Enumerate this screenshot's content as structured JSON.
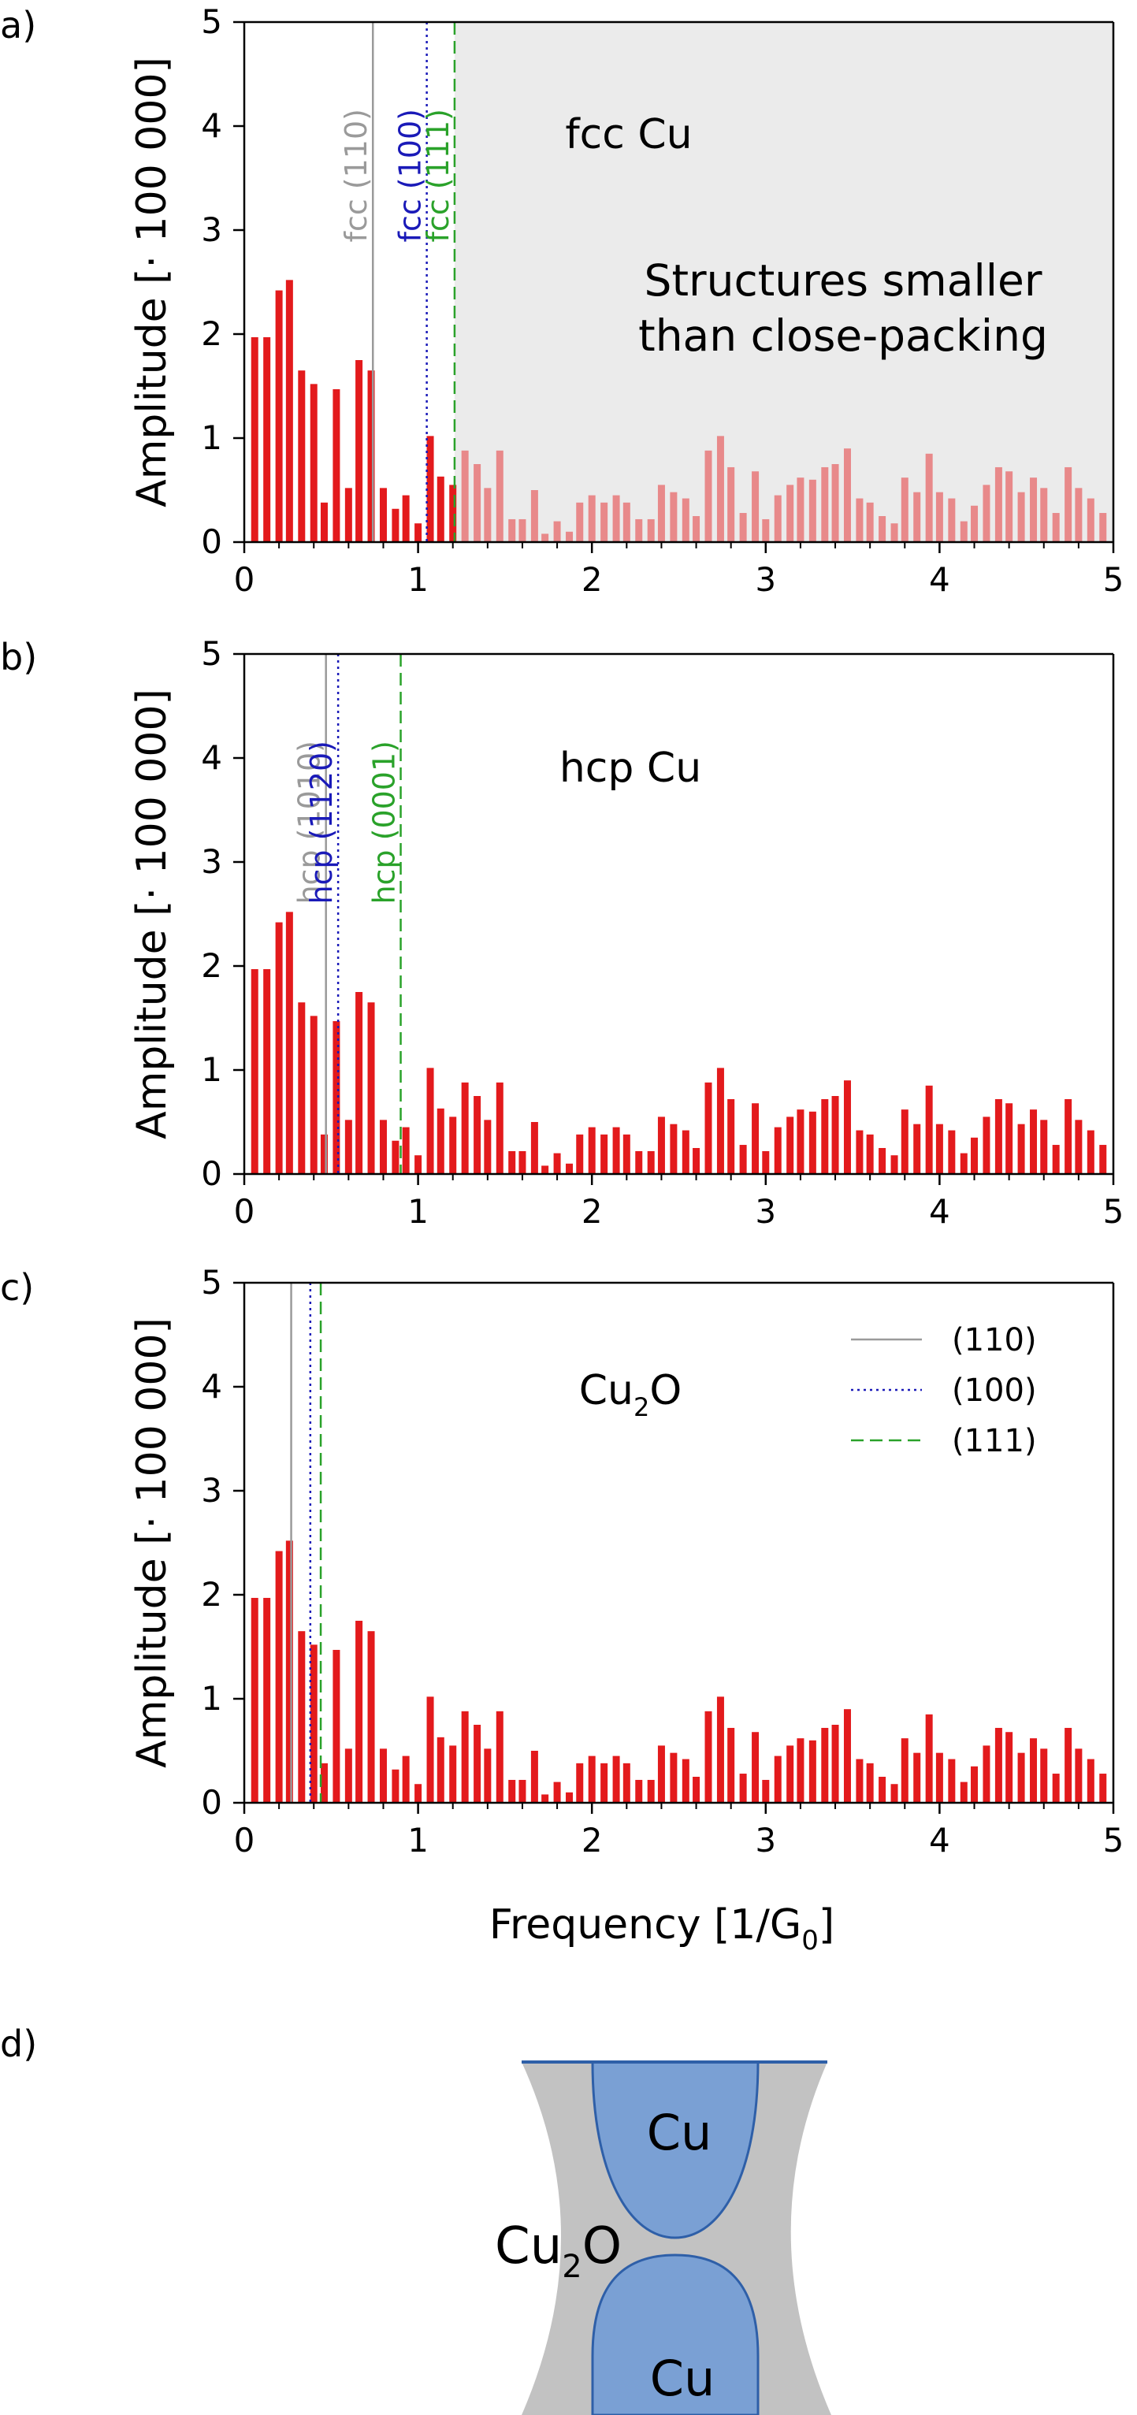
{
  "colors": {
    "bar": "#e31a1c",
    "bar_faded": "#e8898a",
    "shade": "#ebebeb",
    "line_110": "#9a9a9a",
    "line_100": "#1a1ab8",
    "line_111": "#2aa22a",
    "cu_fill": "#7aa0d4",
    "cu_stroke": "#2e5fa8",
    "oxide_fill": "#c2c2c2"
  },
  "chart_data": [
    {
      "type": "bar",
      "panel_label": "a)",
      "title": "fcc Cu",
      "annotation": [
        "Structures smaller",
        "than close-packing"
      ],
      "xlabel": "",
      "ylabel": "Amplitude [· 100 000]",
      "xlim": [
        0,
        5
      ],
      "ylim": [
        0,
        5
      ],
      "xticks": [
        "0",
        "1",
        "2",
        "3",
        "4",
        "5"
      ],
      "yticks": [
        "0",
        "1",
        "2",
        "3",
        "4",
        "5"
      ],
      "shaded_from": 1.21,
      "x": [
        0.06,
        0.13,
        0.2,
        0.26,
        0.33,
        0.4,
        0.46,
        0.53,
        0.6,
        0.66,
        0.73,
        0.8,
        0.87,
        0.93,
        1.0,
        1.07,
        1.13,
        1.2,
        1.27,
        1.34,
        1.4,
        1.47,
        1.54,
        1.6,
        1.67,
        1.73,
        1.8,
        1.87,
        1.93,
        2.0,
        2.07,
        2.14,
        2.2,
        2.27,
        2.34,
        2.4,
        2.47,
        2.54,
        2.6,
        2.67,
        2.74,
        2.8,
        2.87,
        2.94,
        3.0,
        3.07,
        3.14,
        3.2,
        3.27,
        3.34,
        3.4,
        3.47,
        3.54,
        3.6,
        3.67,
        3.74,
        3.8,
        3.87,
        3.94,
        4.0,
        4.07,
        4.14,
        4.2,
        4.27,
        4.34,
        4.4,
        4.47,
        4.54,
        4.6,
        4.67,
        4.74,
        4.8,
        4.87,
        4.94
      ],
      "values": [
        1.97,
        1.97,
        2.42,
        2.52,
        1.65,
        1.52,
        0.38,
        1.47,
        0.52,
        1.75,
        1.65,
        0.52,
        0.32,
        0.45,
        0.18,
        1.02,
        0.63,
        0.55,
        0.88,
        0.75,
        0.52,
        0.88,
        0.22,
        0.22,
        0.5,
        0.08,
        0.2,
        0.1,
        0.38,
        0.45,
        0.38,
        0.45,
        0.38,
        0.22,
        0.22,
        0.55,
        0.48,
        0.42,
        0.25,
        0.88,
        1.02,
        0.72,
        0.28,
        0.68,
        0.22,
        0.45,
        0.55,
        0.62,
        0.6,
        0.72,
        0.75,
        0.9,
        0.42,
        0.38,
        0.25,
        0.18,
        0.62,
        0.48,
        0.85,
        0.48,
        0.42,
        0.2,
        0.35,
        0.55,
        0.72,
        0.68,
        0.48,
        0.62,
        0.52,
        0.28,
        0.72,
        0.52,
        0.42,
        0.28
      ],
      "vlines": [
        {
          "x": 0.74,
          "label": "fcc (110)",
          "style": "solid",
          "color": "#9a9a9a"
        },
        {
          "x": 1.05,
          "label": "fcc (100)",
          "style": "dotted",
          "color": "#1a1ab8"
        },
        {
          "x": 1.21,
          "label": "fcc (111)",
          "style": "dashed",
          "color": "#2aa22a"
        }
      ]
    },
    {
      "type": "bar",
      "panel_label": "b)",
      "title": "hcp Cu",
      "annotation": [],
      "xlabel": "",
      "ylabel": "Amplitude [· 100 000]",
      "xlim": [
        0,
        5
      ],
      "ylim": [
        0,
        5
      ],
      "xticks": [
        "0",
        "1",
        "2",
        "3",
        "4",
        "5"
      ],
      "yticks": [
        "0",
        "1",
        "2",
        "3",
        "4",
        "5"
      ],
      "shaded_from": null,
      "x": [
        0.06,
        0.13,
        0.2,
        0.26,
        0.33,
        0.4,
        0.46,
        0.53,
        0.6,
        0.66,
        0.73,
        0.8,
        0.87,
        0.93,
        1.0,
        1.07,
        1.13,
        1.2,
        1.27,
        1.34,
        1.4,
        1.47,
        1.54,
        1.6,
        1.67,
        1.73,
        1.8,
        1.87,
        1.93,
        2.0,
        2.07,
        2.14,
        2.2,
        2.27,
        2.34,
        2.4,
        2.47,
        2.54,
        2.6,
        2.67,
        2.74,
        2.8,
        2.87,
        2.94,
        3.0,
        3.07,
        3.14,
        3.2,
        3.27,
        3.34,
        3.4,
        3.47,
        3.54,
        3.6,
        3.67,
        3.74,
        3.8,
        3.87,
        3.94,
        4.0,
        4.07,
        4.14,
        4.2,
        4.27,
        4.34,
        4.4,
        4.47,
        4.54,
        4.6,
        4.67,
        4.74,
        4.8,
        4.87,
        4.94
      ],
      "values": [
        1.97,
        1.97,
        2.42,
        2.52,
        1.65,
        1.52,
        0.38,
        1.47,
        0.52,
        1.75,
        1.65,
        0.52,
        0.32,
        0.45,
        0.18,
        1.02,
        0.63,
        0.55,
        0.88,
        0.75,
        0.52,
        0.88,
        0.22,
        0.22,
        0.5,
        0.08,
        0.2,
        0.1,
        0.38,
        0.45,
        0.38,
        0.45,
        0.38,
        0.22,
        0.22,
        0.55,
        0.48,
        0.42,
        0.25,
        0.88,
        1.02,
        0.72,
        0.28,
        0.68,
        0.22,
        0.45,
        0.55,
        0.62,
        0.6,
        0.72,
        0.75,
        0.9,
        0.42,
        0.38,
        0.25,
        0.18,
        0.62,
        0.48,
        0.85,
        0.48,
        0.42,
        0.2,
        0.35,
        0.55,
        0.72,
        0.68,
        0.48,
        0.62,
        0.52,
        0.28,
        0.72,
        0.52,
        0.42,
        0.28
      ],
      "vlines": [
        {
          "x": 0.47,
          "label": "hcp (1010)",
          "style": "solid",
          "color": "#9a9a9a"
        },
        {
          "x": 0.54,
          "label": "hcp (1120)",
          "style": "dotted",
          "color": "#1a1ab8"
        },
        {
          "x": 0.9,
          "label": "hcp (0001)",
          "style": "dashed",
          "color": "#2aa22a"
        }
      ]
    },
    {
      "type": "bar",
      "panel_label": "c)",
      "title": "Cu2O",
      "annotation": [],
      "xlabel": "Frequency [1/G0]",
      "ylabel": "Amplitude [· 100 000]",
      "xlim": [
        0,
        5
      ],
      "ylim": [
        0,
        5
      ],
      "xticks": [
        "0",
        "1",
        "2",
        "3",
        "4",
        "5"
      ],
      "yticks": [
        "0",
        "1",
        "2",
        "3",
        "4",
        "5"
      ],
      "shaded_from": null,
      "legend": [
        "(110)",
        "(100)",
        "(111)"
      ],
      "x": [
        0.06,
        0.13,
        0.2,
        0.26,
        0.33,
        0.4,
        0.46,
        0.53,
        0.6,
        0.66,
        0.73,
        0.8,
        0.87,
        0.93,
        1.0,
        1.07,
        1.13,
        1.2,
        1.27,
        1.34,
        1.4,
        1.47,
        1.54,
        1.6,
        1.67,
        1.73,
        1.8,
        1.87,
        1.93,
        2.0,
        2.07,
        2.14,
        2.2,
        2.27,
        2.34,
        2.4,
        2.47,
        2.54,
        2.6,
        2.67,
        2.74,
        2.8,
        2.87,
        2.94,
        3.0,
        3.07,
        3.14,
        3.2,
        3.27,
        3.34,
        3.4,
        3.47,
        3.54,
        3.6,
        3.67,
        3.74,
        3.8,
        3.87,
        3.94,
        4.0,
        4.07,
        4.14,
        4.2,
        4.27,
        4.34,
        4.4,
        4.47,
        4.54,
        4.6,
        4.67,
        4.74,
        4.8,
        4.87,
        4.94
      ],
      "values": [
        1.97,
        1.97,
        2.42,
        2.52,
        1.65,
        1.52,
        0.38,
        1.47,
        0.52,
        1.75,
        1.65,
        0.52,
        0.32,
        0.45,
        0.18,
        1.02,
        0.63,
        0.55,
        0.88,
        0.75,
        0.52,
        0.88,
        0.22,
        0.22,
        0.5,
        0.08,
        0.2,
        0.1,
        0.38,
        0.45,
        0.38,
        0.45,
        0.38,
        0.22,
        0.22,
        0.55,
        0.48,
        0.42,
        0.25,
        0.88,
        1.02,
        0.72,
        0.28,
        0.68,
        0.22,
        0.45,
        0.55,
        0.62,
        0.6,
        0.72,
        0.75,
        0.9,
        0.42,
        0.38,
        0.25,
        0.18,
        0.62,
        0.48,
        0.85,
        0.48,
        0.42,
        0.2,
        0.35,
        0.55,
        0.72,
        0.68,
        0.48,
        0.62,
        0.52,
        0.28,
        0.72,
        0.52,
        0.42,
        0.28
      ],
      "vlines": [
        {
          "x": 0.27,
          "label": "(110)",
          "style": "solid",
          "color": "#9a9a9a"
        },
        {
          "x": 0.38,
          "label": "(100)",
          "style": "dotted",
          "color": "#1a1ab8"
        },
        {
          "x": 0.44,
          "label": "(111)",
          "style": "dashed",
          "color": "#2aa22a"
        }
      ]
    }
  ],
  "schematic": {
    "panel_label": "d)",
    "top_label": "Cu",
    "bottom_label": "Cu",
    "middle_label": "Cu2O"
  }
}
